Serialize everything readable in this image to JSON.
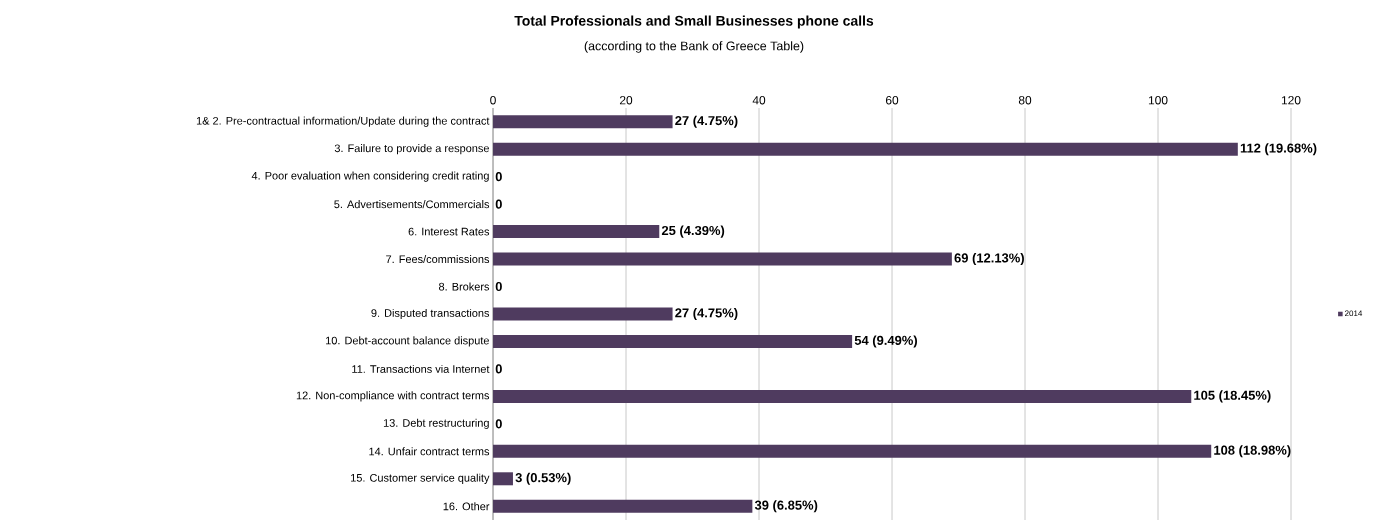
{
  "chart_data": {
    "type": "bar",
    "orientation": "horizontal",
    "title": "Total Professionals and Small Businesses phone calls",
    "subtitle": "(according to the Bank of Greece Table)",
    "categories": [
      "1& 2. Pre-contractual information/Update during the contract",
      "3. Failure to provide a response",
      "4. Poor evaluation when considering credit rating",
      "5. Advertisements/Commercials",
      "6. Interest Rates",
      "7. Fees/commissions",
      "8. Brokers",
      "9. Disputed transactions",
      "10. Debt-account balance dispute",
      "11. Transactions via Internet",
      "12. Non-compliance with contract terms",
      "13. Debt restructuring",
      "14. Unfair contract terms",
      "15. Customer service quality",
      "16. Other"
    ],
    "series": [
      {
        "name": "2014",
        "color": "#4f3b5f",
        "values": [
          27,
          112,
          0,
          0,
          25,
          69,
          0,
          27,
          54,
          0,
          105,
          0,
          108,
          3,
          39
        ],
        "value_labels": [
          "27 (4.75%)",
          "112 (19.68%)",
          "0",
          "0",
          "25 (4.39%)",
          "69 (12.13%)",
          "0",
          "27 (4.75%)",
          "54 (9.49%)",
          "0",
          "105 (18.45%)",
          "0",
          "108 (18.98%)",
          "3 (0.53%)",
          "39 (6.85%)"
        ]
      }
    ],
    "xlim": [
      0,
      120
    ],
    "xticks": [
      0,
      20,
      40,
      60,
      80,
      100,
      120
    ],
    "grid": "x",
    "legend": "right"
  }
}
